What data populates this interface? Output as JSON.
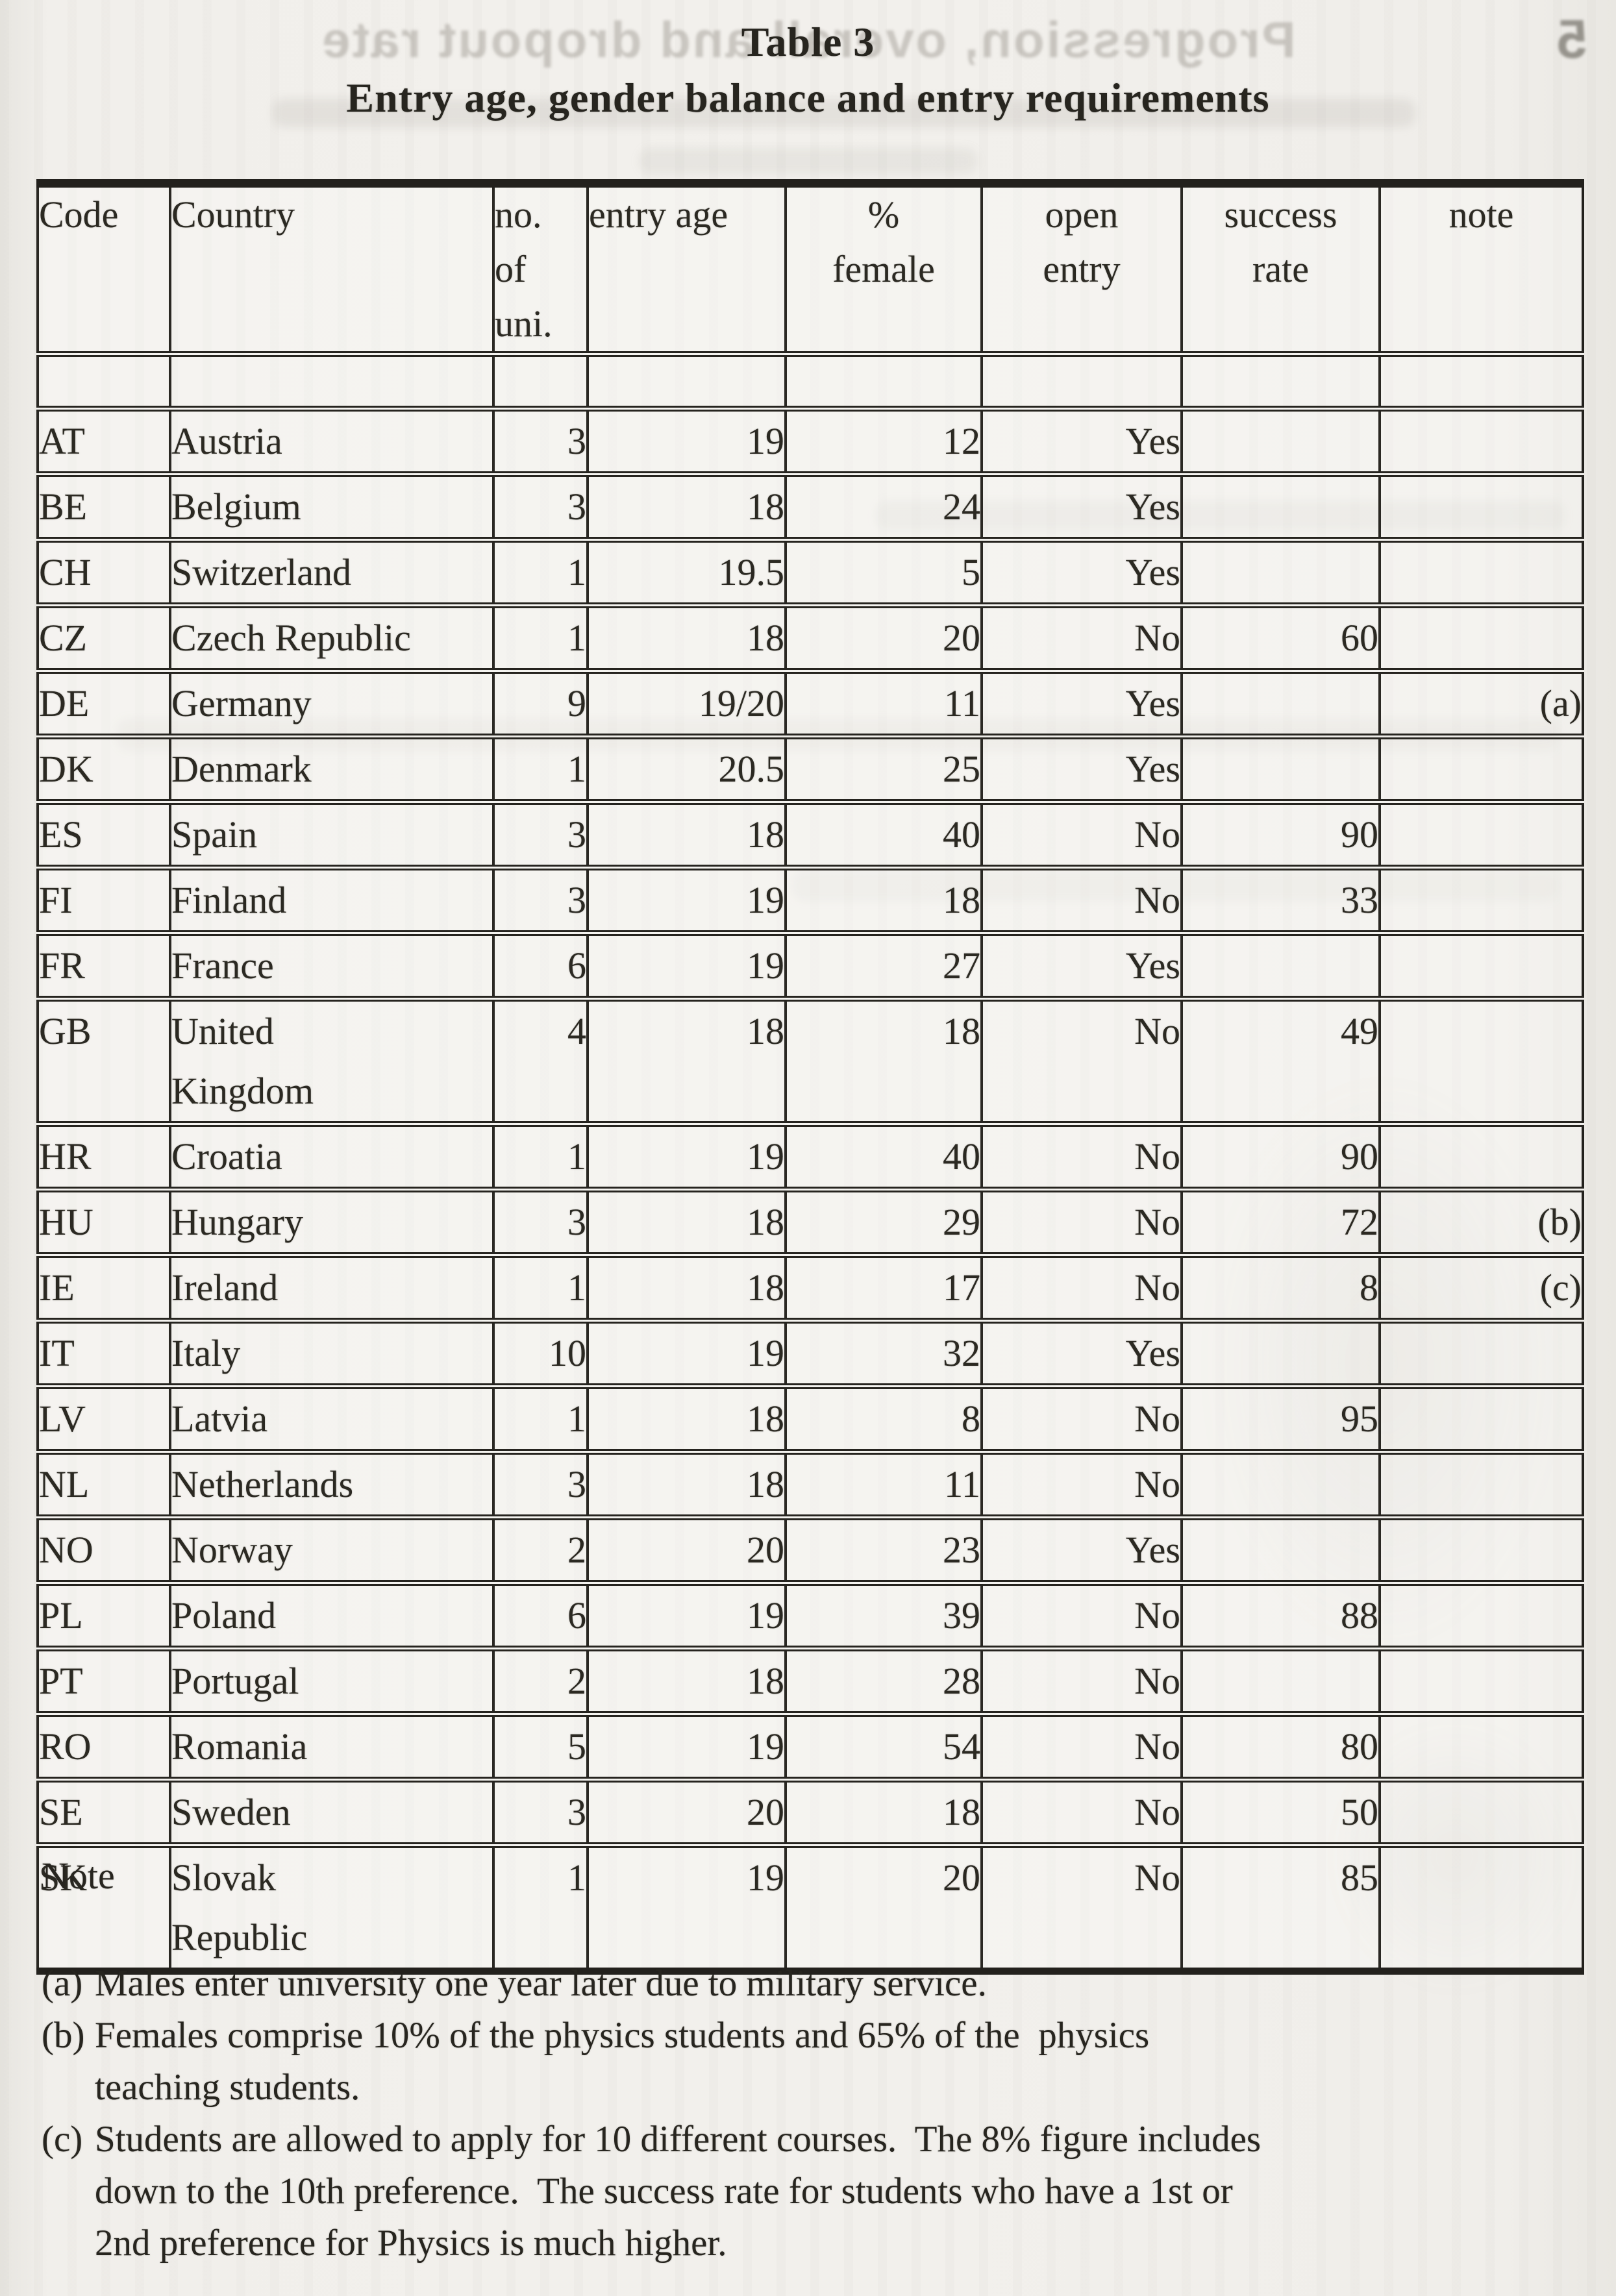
{
  "page": {
    "title_line1": "Table 3",
    "title_line2": "Entry age, gender balance and entry requirements"
  },
  "scan_artifacts": {
    "bleedthrough_heading": "Progression, overall and dropout rate",
    "bleedthrough_section_number": "5"
  },
  "table": {
    "header": {
      "code": "Code",
      "country": "Country",
      "uni": "no.\nof\nuni.",
      "entry_age": "entry age",
      "female": "%\nfemale",
      "open": "open\nentry",
      "success": "success\nrate",
      "note": "note"
    },
    "rows": [
      {
        "code": "AT",
        "country": "Austria",
        "uni": "3",
        "entry_age": "19",
        "female": "12",
        "open": "Yes",
        "success": "",
        "note": ""
      },
      {
        "code": "BE",
        "country": "Belgium",
        "uni": "3",
        "entry_age": "18",
        "female": "24",
        "open": "Yes",
        "success": "",
        "note": ""
      },
      {
        "code": "CH",
        "country": "Switzerland",
        "uni": "1",
        "entry_age": "19.5",
        "female": "5",
        "open": "Yes",
        "success": "",
        "note": ""
      },
      {
        "code": "CZ",
        "country": "Czech Republic",
        "uni": "1",
        "entry_age": "18",
        "female": "20",
        "open": "No",
        "success": "60",
        "note": ""
      },
      {
        "code": "DE",
        "country": "Germany",
        "uni": "9",
        "entry_age": "19/20",
        "female": "11",
        "open": "Yes",
        "success": "",
        "note": "(a)"
      },
      {
        "code": "DK",
        "country": "Denmark",
        "uni": "1",
        "entry_age": "20.5",
        "female": "25",
        "open": "Yes",
        "success": "",
        "note": ""
      },
      {
        "code": "ES",
        "country": "Spain",
        "uni": "3",
        "entry_age": "18",
        "female": "40",
        "open": "No",
        "success": "90",
        "note": ""
      },
      {
        "code": "FI",
        "country": "Finland",
        "uni": "3",
        "entry_age": "19",
        "female": "18",
        "open": "No",
        "success": "33",
        "note": ""
      },
      {
        "code": "FR",
        "country": "France",
        "uni": "6",
        "entry_age": "19",
        "female": "27",
        "open": "Yes",
        "success": "",
        "note": ""
      },
      {
        "code": "GB",
        "country": "United\nKingdom",
        "uni": "4",
        "entry_age": "18",
        "female": "18",
        "open": "No",
        "success": "49",
        "note": ""
      },
      {
        "code": "HR",
        "country": "Croatia",
        "uni": "1",
        "entry_age": "19",
        "female": "40",
        "open": "No",
        "success": "90",
        "note": ""
      },
      {
        "code": "HU",
        "country": "Hungary",
        "uni": "3",
        "entry_age": "18",
        "female": "29",
        "open": "No",
        "success": "72",
        "note": "(b)"
      },
      {
        "code": "IE",
        "country": "Ireland",
        "uni": "1",
        "entry_age": "18",
        "female": "17",
        "open": "No",
        "success": "8",
        "note": "(c)"
      },
      {
        "code": "IT",
        "country": "Italy",
        "uni": "10",
        "entry_age": "19",
        "female": "32",
        "open": "Yes",
        "success": "",
        "note": ""
      },
      {
        "code": "LV",
        "country": "Latvia",
        "uni": "1",
        "entry_age": "18",
        "female": "8",
        "open": "No",
        "success": "95",
        "note": ""
      },
      {
        "code": "NL",
        "country": "Netherlands",
        "uni": "3",
        "entry_age": "18",
        "female": "11",
        "open": "No",
        "success": "",
        "note": ""
      },
      {
        "code": "NO",
        "country": "Norway",
        "uni": "2",
        "entry_age": "20",
        "female": "23",
        "open": "Yes",
        "success": "",
        "note": ""
      },
      {
        "code": "PL",
        "country": "Poland",
        "uni": "6",
        "entry_age": "19",
        "female": "39",
        "open": "No",
        "success": "88",
        "note": ""
      },
      {
        "code": "PT",
        "country": "Portugal",
        "uni": "2",
        "entry_age": "18",
        "female": "28",
        "open": "No",
        "success": "",
        "note": ""
      },
      {
        "code": "RO",
        "country": "Romania",
        "uni": "5",
        "entry_age": "19",
        "female": "54",
        "open": "No",
        "success": "80",
        "note": ""
      },
      {
        "code": "SE",
        "country": "Sweden",
        "uni": "3",
        "entry_age": "20",
        "female": "18",
        "open": "No",
        "success": "50",
        "note": ""
      },
      {
        "code": "SK",
        "country": "Slovak\nRepublic",
        "uni": "1",
        "entry_age": "19",
        "female": "20",
        "open": "No",
        "success": "85",
        "note": ""
      }
    ]
  },
  "notes": {
    "heading": "Note",
    "items": [
      {
        "label": "(a)",
        "text": "Males enter university one year later due to military service."
      },
      {
        "label": "(b)",
        "text": "Females comprise 10% of the physics students and 65% of the  physics\nteaching students."
      },
      {
        "label": "(c)",
        "text": "Students are allowed to apply for 10 different courses.  The 8% figure includes\ndown to the 10th preference.  The success rate for students who have a 1st or\n2nd preference for Physics is much higher."
      }
    ]
  }
}
